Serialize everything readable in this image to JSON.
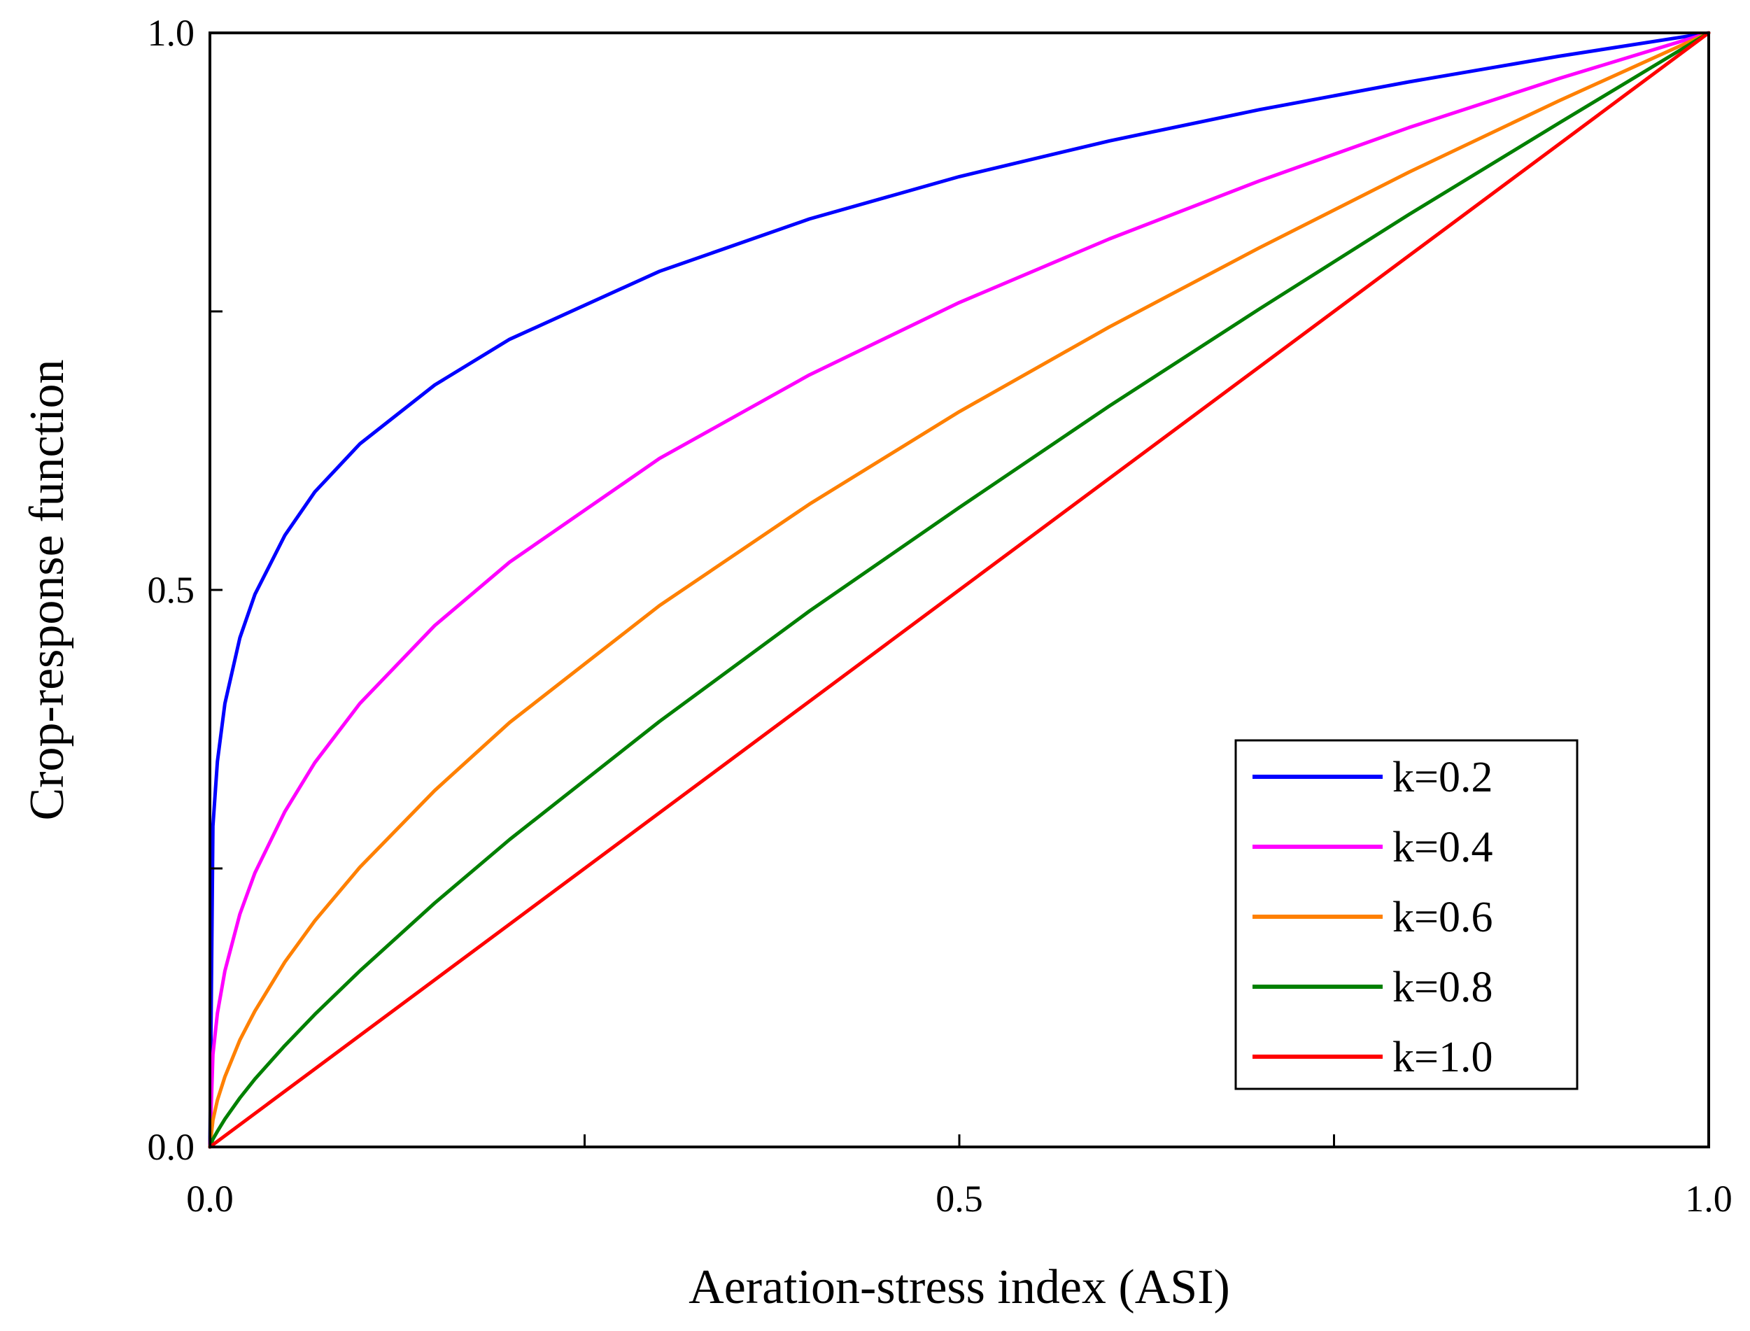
{
  "chart_data": {
    "type": "line",
    "title": "",
    "xlabel": "Aeration-stress index (ASI)",
    "ylabel": "Crop-response function",
    "xlim": [
      0.0,
      1.0
    ],
    "ylim": [
      0.0,
      1.0
    ],
    "xticks": [
      {
        "value": 0.0,
        "label": "0.0"
      },
      {
        "value": 0.25,
        "label": ""
      },
      {
        "value": 0.5,
        "label": "0.5"
      },
      {
        "value": 0.75,
        "label": ""
      },
      {
        "value": 1.0,
        "label": "1.0"
      }
    ],
    "yticks": [
      {
        "value": 0.0,
        "label": "0.0"
      },
      {
        "value": 0.25,
        "label": ""
      },
      {
        "value": 0.5,
        "label": "0.5"
      },
      {
        "value": 0.75,
        "label": ""
      },
      {
        "value": 1.0,
        "label": "1.0"
      }
    ],
    "grid": false,
    "legend_position": "bottom-right",
    "series": [
      {
        "name": "k=0.2",
        "k": 0.2,
        "color": "#0000ff",
        "x": [
          0,
          0.002,
          0.005,
          0.01,
          0.02,
          0.03,
          0.05,
          0.07,
          0.1,
          0.15,
          0.2,
          0.3,
          0.4,
          0.5,
          0.6,
          0.7,
          0.8,
          0.9,
          1.0
        ],
        "y": [
          0,
          0.288,
          0.346,
          0.398,
          0.457,
          0.496,
          0.549,
          0.588,
          0.631,
          0.684,
          0.725,
          0.786,
          0.833,
          0.871,
          0.903,
          0.931,
          0.956,
          0.979,
          1.0
        ]
      },
      {
        "name": "k=0.4",
        "k": 0.4,
        "color": "#ff00ff",
        "x": [
          0,
          0.002,
          0.005,
          0.01,
          0.02,
          0.03,
          0.05,
          0.07,
          0.1,
          0.15,
          0.2,
          0.3,
          0.4,
          0.5,
          0.6,
          0.7,
          0.8,
          0.9,
          1.0
        ],
        "y": [
          0,
          0.083,
          0.12,
          0.158,
          0.209,
          0.246,
          0.301,
          0.345,
          0.398,
          0.468,
          0.525,
          0.618,
          0.693,
          0.758,
          0.815,
          0.867,
          0.915,
          0.959,
          1.0
        ]
      },
      {
        "name": "k=0.6",
        "k": 0.6,
        "color": "#ff8000",
        "x": [
          0,
          0.002,
          0.005,
          0.01,
          0.02,
          0.03,
          0.05,
          0.07,
          0.1,
          0.15,
          0.2,
          0.3,
          0.4,
          0.5,
          0.6,
          0.7,
          0.8,
          0.9,
          1.0
        ],
        "y": [
          0,
          0.024,
          0.042,
          0.063,
          0.096,
          0.122,
          0.166,
          0.203,
          0.251,
          0.32,
          0.381,
          0.486,
          0.577,
          0.66,
          0.736,
          0.807,
          0.875,
          0.939,
          1.0
        ]
      },
      {
        "name": "k=0.8",
        "k": 0.8,
        "color": "#008000",
        "x": [
          0,
          0.002,
          0.005,
          0.01,
          0.02,
          0.03,
          0.05,
          0.07,
          0.1,
          0.15,
          0.2,
          0.3,
          0.4,
          0.5,
          0.6,
          0.7,
          0.8,
          0.9,
          1.0
        ],
        "y": [
          0,
          0.007,
          0.014,
          0.025,
          0.044,
          0.061,
          0.091,
          0.119,
          0.158,
          0.219,
          0.276,
          0.382,
          0.481,
          0.574,
          0.665,
          0.752,
          0.837,
          0.919,
          1.0
        ]
      },
      {
        "name": "k=1.0",
        "k": 1.0,
        "color": "#ff0000",
        "x": [
          0,
          0.1,
          0.2,
          0.3,
          0.4,
          0.5,
          0.6,
          0.7,
          0.8,
          0.9,
          1.0
        ],
        "y": [
          0,
          0.1,
          0.2,
          0.3,
          0.4,
          0.5,
          0.6,
          0.7,
          0.8,
          0.9,
          1.0
        ]
      }
    ]
  }
}
